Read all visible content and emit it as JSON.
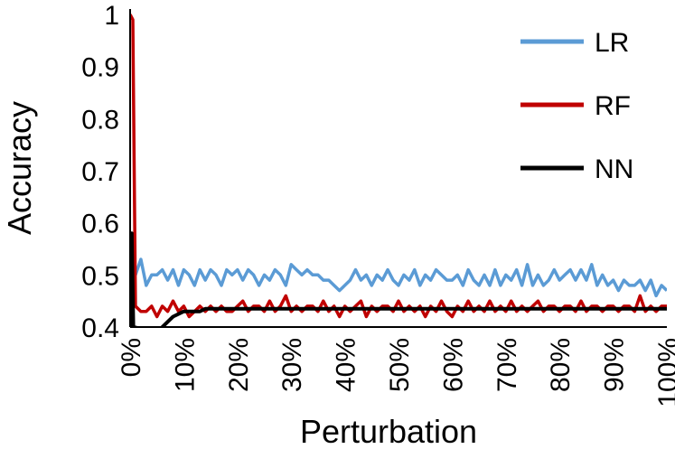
{
  "chart_data": {
    "type": "line",
    "title": "",
    "xlabel": "Perturbation",
    "ylabel": "Accuracy",
    "xlim": [
      0,
      100
    ],
    "ylim": [
      0.4,
      1.0
    ],
    "y_ticks": [
      "0.4",
      "0.5",
      "0.6",
      "0.7",
      "0.8",
      "0.9",
      "1"
    ],
    "x_ticks": [
      "0%",
      "10%",
      "20%",
      "30%",
      "40%",
      "50%",
      "60%",
      "70%",
      "80%",
      "90%",
      "100%"
    ],
    "grid": false,
    "legend_position": "top-right",
    "series": [
      {
        "name": "LR",
        "color": "#5B9BD5",
        "x": [
          1,
          2,
          3,
          4,
          5,
          6,
          7,
          8,
          9,
          10,
          11,
          12,
          13,
          14,
          15,
          16,
          17,
          18,
          19,
          20,
          21,
          22,
          23,
          24,
          25,
          26,
          27,
          28,
          29,
          30,
          31,
          32,
          33,
          34,
          35,
          36,
          37,
          38,
          39,
          40,
          41,
          42,
          43,
          44,
          45,
          46,
          47,
          48,
          49,
          50,
          51,
          52,
          53,
          54,
          55,
          56,
          57,
          58,
          59,
          60,
          61,
          62,
          63,
          64,
          65,
          66,
          67,
          68,
          69,
          70,
          71,
          72,
          73,
          74,
          75,
          76,
          77,
          78,
          79,
          80,
          81,
          82,
          83,
          84,
          85,
          86,
          87,
          88,
          89,
          90,
          91,
          92,
          93,
          94,
          95,
          96,
          97,
          98,
          99,
          100
        ],
        "y": [
          0.5,
          0.53,
          0.48,
          0.5,
          0.5,
          0.51,
          0.49,
          0.51,
          0.48,
          0.51,
          0.5,
          0.48,
          0.51,
          0.49,
          0.51,
          0.5,
          0.48,
          0.51,
          0.5,
          0.51,
          0.49,
          0.51,
          0.5,
          0.48,
          0.5,
          0.49,
          0.51,
          0.5,
          0.48,
          0.52,
          0.51,
          0.5,
          0.51,
          0.5,
          0.5,
          0.49,
          0.49,
          0.48,
          0.47,
          0.48,
          0.49,
          0.51,
          0.49,
          0.5,
          0.48,
          0.5,
          0.49,
          0.51,
          0.49,
          0.48,
          0.5,
          0.49,
          0.51,
          0.48,
          0.5,
          0.49,
          0.51,
          0.5,
          0.49,
          0.49,
          0.5,
          0.48,
          0.51,
          0.49,
          0.48,
          0.5,
          0.48,
          0.51,
          0.48,
          0.5,
          0.49,
          0.51,
          0.48,
          0.52,
          0.48,
          0.5,
          0.48,
          0.49,
          0.51,
          0.49,
          0.5,
          0.51,
          0.49,
          0.51,
          0.49,
          0.52,
          0.48,
          0.5,
          0.48,
          0.49,
          0.47,
          0.49,
          0.48,
          0.48,
          0.49,
          0.47,
          0.49,
          0.46,
          0.48,
          0.47
        ]
      },
      {
        "name": "RF",
        "color": "#C00000",
        "x": [
          0,
          0.5,
          1,
          2,
          3,
          4,
          5,
          6,
          7,
          8,
          9,
          10,
          11,
          12,
          13,
          14,
          15,
          16,
          17,
          18,
          19,
          20,
          21,
          22,
          23,
          24,
          25,
          26,
          27,
          28,
          29,
          30,
          31,
          32,
          33,
          34,
          35,
          36,
          37,
          38,
          39,
          40,
          41,
          42,
          43,
          44,
          45,
          46,
          47,
          48,
          49,
          50,
          51,
          52,
          53,
          54,
          55,
          56,
          57,
          58,
          59,
          60,
          61,
          62,
          63,
          64,
          65,
          66,
          67,
          68,
          69,
          70,
          71,
          72,
          73,
          74,
          75,
          76,
          77,
          78,
          79,
          80,
          81,
          82,
          83,
          84,
          85,
          86,
          87,
          88,
          89,
          90,
          91,
          92,
          93,
          94,
          95,
          96,
          97,
          98,
          99,
          100
        ],
        "y": [
          1.0,
          0.99,
          0.44,
          0.43,
          0.43,
          0.44,
          0.42,
          0.44,
          0.43,
          0.45,
          0.43,
          0.44,
          0.42,
          0.43,
          0.44,
          0.43,
          0.44,
          0.43,
          0.44,
          0.43,
          0.43,
          0.44,
          0.45,
          0.43,
          0.44,
          0.44,
          0.43,
          0.45,
          0.43,
          0.44,
          0.46,
          0.43,
          0.44,
          0.43,
          0.44,
          0.44,
          0.43,
          0.45,
          0.43,
          0.44,
          0.42,
          0.44,
          0.43,
          0.44,
          0.45,
          0.42,
          0.44,
          0.43,
          0.44,
          0.44,
          0.43,
          0.45,
          0.43,
          0.44,
          0.43,
          0.44,
          0.42,
          0.44,
          0.43,
          0.45,
          0.43,
          0.42,
          0.44,
          0.43,
          0.45,
          0.43,
          0.44,
          0.43,
          0.45,
          0.43,
          0.44,
          0.43,
          0.45,
          0.43,
          0.44,
          0.43,
          0.44,
          0.45,
          0.43,
          0.44,
          0.44,
          0.43,
          0.44,
          0.44,
          0.43,
          0.45,
          0.43,
          0.44,
          0.44,
          0.43,
          0.44,
          0.44,
          0.43,
          0.44,
          0.44,
          0.43,
          0.46,
          0.43,
          0.44,
          0.43,
          0.44,
          0.44
        ]
      },
      {
        "name": "NN",
        "color": "#000000",
        "x": [
          0,
          0.1,
          0.3,
          0.6,
          5,
          6,
          7,
          8,
          9,
          10,
          11,
          12,
          13,
          14,
          15,
          20,
          30,
          40,
          50,
          60,
          70,
          80,
          90,
          100
        ],
        "y": [
          0.4,
          0.58,
          0.58,
          0.4,
          0.39,
          0.4,
          0.41,
          0.42,
          0.425,
          0.43,
          0.43,
          0.43,
          0.43,
          0.435,
          0.435,
          0.435,
          0.435,
          0.435,
          0.435,
          0.435,
          0.435,
          0.435,
          0.435,
          0.435
        ]
      }
    ]
  }
}
